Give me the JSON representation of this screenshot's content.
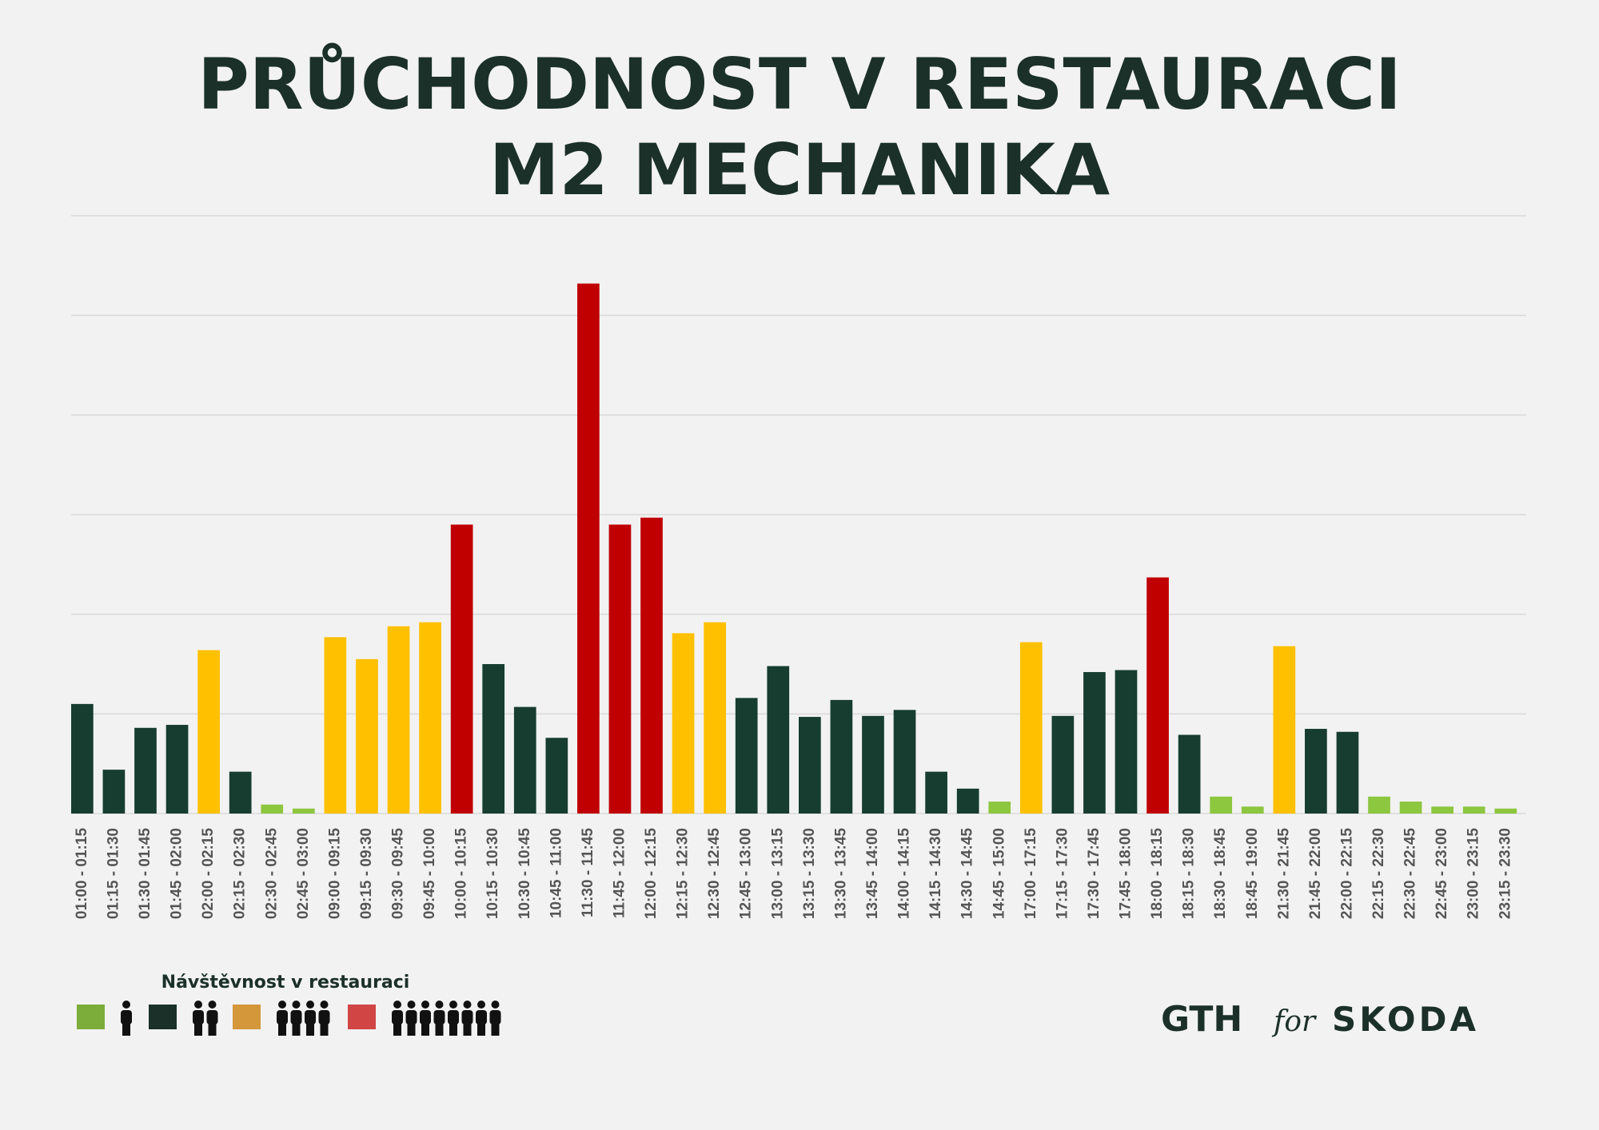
{
  "chart_data": {
    "type": "bar",
    "title": "PRŮCHODNOST V RESTAURACI",
    "subtitle": "M2 MECHANIKA",
    "categories": [
      "01:00 - 01:15",
      "01:15 - 01:30",
      "01:30 - 01:45",
      "01:45 - 02:00",
      "02:00 - 02:15",
      "02:15 - 02:30",
      "02:30 - 02:45",
      "02:45 - 03:00",
      "09:00 - 09:15",
      "09:15 - 09:30",
      "09:30 - 09:45",
      "09:45 - 10:00",
      "10:00 - 10:15",
      "10:15 - 10:30",
      "10:30 - 10:45",
      "10:45 - 11:00",
      "11:30 - 11:45",
      "11:45 - 12:00",
      "12:00 - 12:15",
      "12:15 - 12:30",
      "12:30 - 12:45",
      "12:45 - 13:00",
      "13:00 - 13:15",
      "13:15 - 13:30",
      "13:30 - 13:45",
      "13:45 - 14:00",
      "14:00 - 14:15",
      "14:15 - 14:30",
      "14:30 - 14:45",
      "14:45 - 15:00",
      "17:00 - 17:15",
      "17:15 - 17:30",
      "17:30 - 17:45",
      "17:45 - 18:00",
      "18:00 - 18:15",
      "18:15 - 18:30",
      "18:30 - 18:45",
      "18:45 - 19:00",
      "21:30 - 21:45",
      "21:45 - 22:00",
      "22:00 - 22:15",
      "22:15 - 22:30",
      "22:30 - 22:45",
      "22:45 - 23:00",
      "23:00 - 23:15",
      "23:15 - 23:30"
    ],
    "values": [
      11,
      4.4,
      8.6,
      8.9,
      16.4,
      4.2,
      0.9,
      0.5,
      17.7,
      15.5,
      18.8,
      19.2,
      29,
      15,
      10.7,
      7.6,
      53.2,
      29,
      29.7,
      18.1,
      19.2,
      11.6,
      14.8,
      9.7,
      11.4,
      9.8,
      10.4,
      4.2,
      2.5,
      1.2,
      17.2,
      9.8,
      14.2,
      14.4,
      23.7,
      7.9,
      1.7,
      0.7,
      16.8,
      8.5,
      8.2,
      1.7,
      1.2,
      0.7,
      0.7,
      0.5
    ],
    "colors": [
      "#163d30",
      "#163d30",
      "#163d30",
      "#163d30",
      "#ffc000",
      "#163d30",
      "#8dc63f",
      "#8dc63f",
      "#ffc000",
      "#ffc000",
      "#ffc000",
      "#ffc000",
      "#c00000",
      "#163d30",
      "#163d30",
      "#163d30",
      "#c00000",
      "#c00000",
      "#c00000",
      "#ffc000",
      "#ffc000",
      "#163d30",
      "#163d30",
      "#163d30",
      "#163d30",
      "#163d30",
      "#163d30",
      "#163d30",
      "#163d30",
      "#8dc63f",
      "#ffc000",
      "#163d30",
      "#163d30",
      "#163d30",
      "#c00000",
      "#163d30",
      "#8dc63f",
      "#8dc63f",
      "#ffc000",
      "#163d30",
      "#163d30",
      "#8dc63f",
      "#8dc63f",
      "#8dc63f",
      "#8dc63f",
      "#8dc63f"
    ],
    "ylim": [
      0,
      60
    ],
    "yticks": [
      0,
      10,
      20,
      30,
      40,
      50,
      60
    ],
    "grid": true,
    "legend": {
      "title": "Návštěvnost v restauraci",
      "colors": [
        "#7cad3a",
        "#1a3028",
        "#d4973a",
        "#d24545"
      ]
    }
  },
  "branding": {
    "left": "GTH",
    "middle": "for",
    "right": "SKODA"
  }
}
